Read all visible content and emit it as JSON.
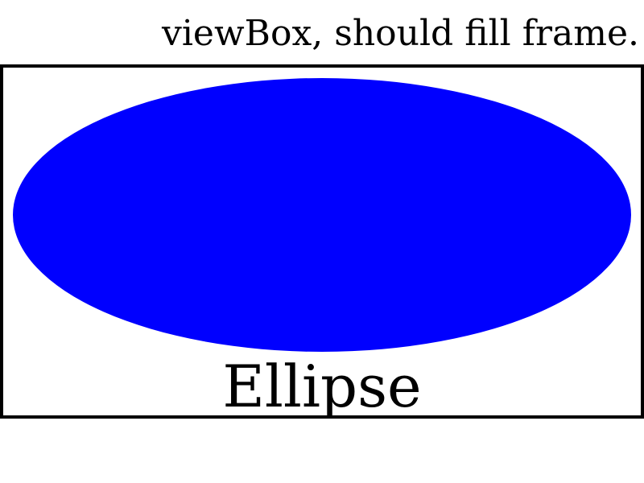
{
  "caption": "viewBox, should fill frame.",
  "shape": {
    "label": "Ellipse",
    "fill_color": "#0000ff",
    "text_color": "#000000"
  },
  "frame": {
    "stroke_color": "#000000",
    "background_color": "#ffffff"
  }
}
